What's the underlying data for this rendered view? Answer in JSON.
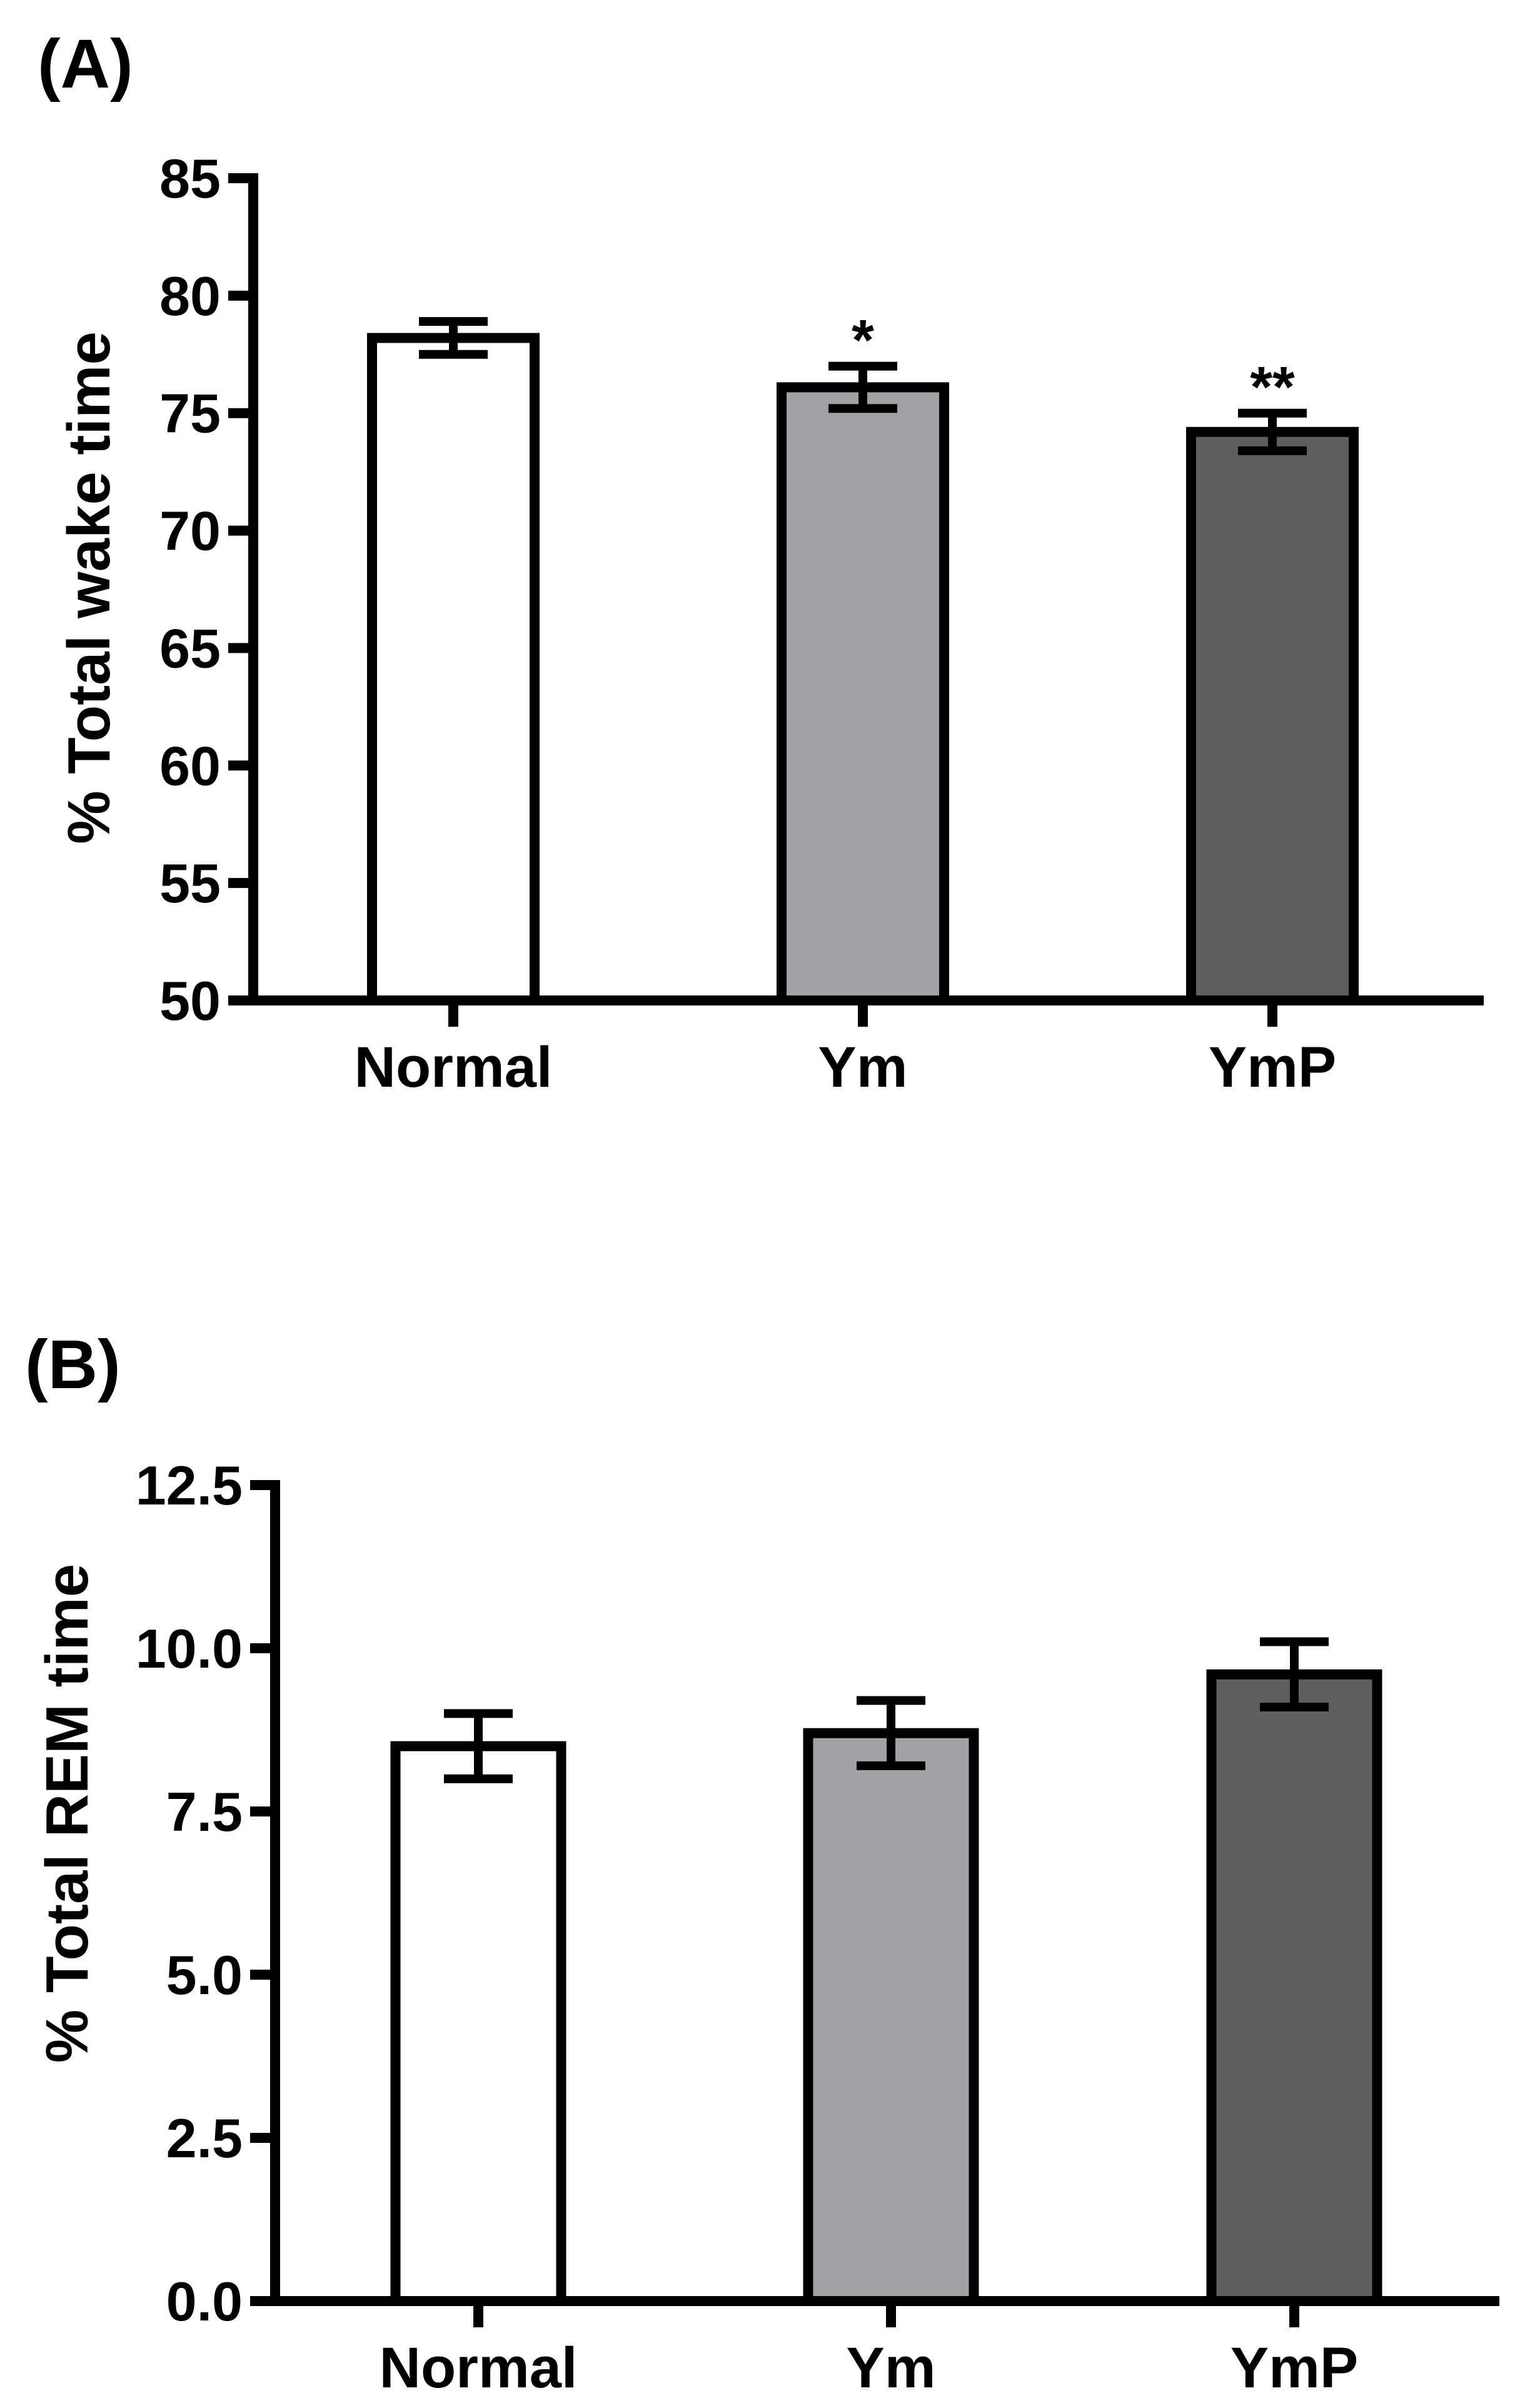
{
  "chart_data": [
    {
      "panel": "(A)",
      "type": "bar",
      "title": "",
      "xlabel": "",
      "ylabel": "% Total  wake time",
      "ylim": [
        50,
        85
      ],
      "yticks": [
        "50",
        "55",
        "60",
        "65",
        "70",
        "75",
        "80",
        "85"
      ],
      "categories": [
        "Normal",
        "Ym",
        "YmP"
      ],
      "values": [
        78.2,
        76.1,
        74.2
      ],
      "errors": [
        0.7,
        0.9,
        0.8
      ],
      "significance": [
        "",
        "*",
        "**"
      ],
      "fill_colors": [
        "#ffffff",
        "#a2a2a6",
        "#5f5f5f"
      ]
    },
    {
      "panel": "(B)",
      "type": "bar",
      "title": "",
      "xlabel": "",
      "ylabel": "% Total REM time",
      "ylim": [
        0,
        12.5
      ],
      "yticks": [
        "0.0",
        "2.5",
        "5.0",
        "7.5",
        "10.0",
        "12.5"
      ],
      "categories": [
        "Normal",
        "Ym",
        "YmP"
      ],
      "values": [
        8.5,
        8.7,
        9.6
      ],
      "errors": [
        0.5,
        0.5,
        0.5
      ],
      "significance": [
        "",
        "",
        ""
      ],
      "fill_colors": [
        "#ffffff",
        "#a2a2a6",
        "#5f5f5f"
      ]
    }
  ]
}
